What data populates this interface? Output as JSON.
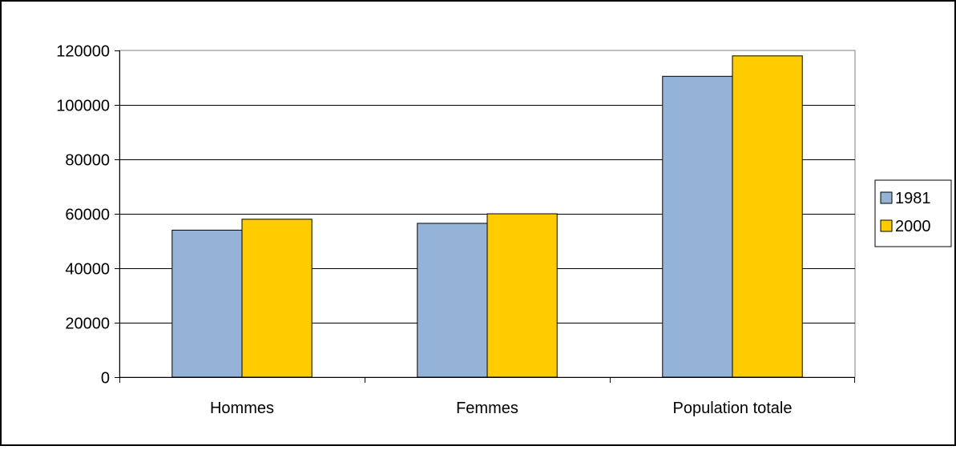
{
  "chart_data": {
    "type": "bar",
    "categories": [
      "Hommes",
      "Femmes",
      "Population totale"
    ],
    "series": [
      {
        "name": "1981",
        "values": [
          54000,
          56500,
          110500
        ],
        "color": "#95b3d7"
      },
      {
        "name": "2000",
        "values": [
          58000,
          60000,
          118000
        ],
        "color": "#ffcc00"
      }
    ],
    "ylim": [
      0,
      120000
    ],
    "yticks": [
      0,
      20000,
      40000,
      60000,
      80000,
      100000,
      120000
    ],
    "ytick_labels": [
      "0",
      "20000",
      "40000",
      "60000",
      "80000",
      "100000",
      "120000"
    ],
    "title": "",
    "xlabel": "",
    "ylabel": "",
    "grid": true,
    "legend_position": "right"
  }
}
